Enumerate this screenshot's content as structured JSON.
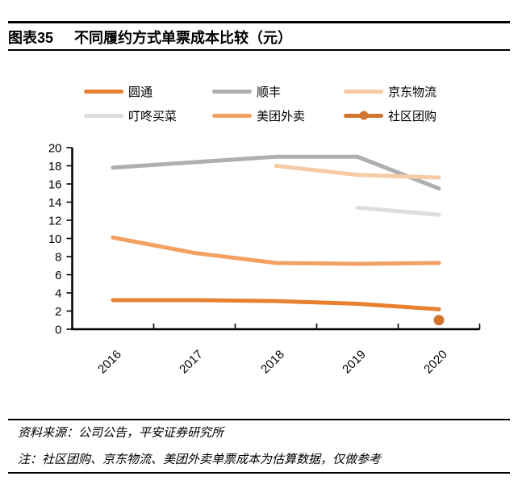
{
  "header": {
    "figure_label": "图表35",
    "title": "不同履约方式单票成本比较（元）"
  },
  "footer": {
    "source": "资料来源：公司公告，平安证券研究所",
    "note": "注：社区团购、京东物流、美团外卖单票成本为估算数据，仅做参考"
  },
  "chart_data": {
    "type": "line",
    "title": "不同履约方式单票成本比较（元）",
    "categories": [
      "2016",
      "2017",
      "2018",
      "2019",
      "2020"
    ],
    "series": [
      {
        "name": "圆通",
        "color": "#E8802E",
        "marker": "none",
        "values": [
          3.2,
          3.2,
          3.1,
          2.8,
          2.2
        ]
      },
      {
        "name": "顺丰",
        "color": "#AFAFAF",
        "marker": "none",
        "values": [
          17.8,
          18.4,
          19.0,
          19.0,
          15.5
        ]
      },
      {
        "name": "京东物流",
        "color": "#F7CBA4",
        "marker": "none",
        "values": [
          null,
          null,
          18.0,
          17.0,
          16.7
        ]
      },
      {
        "name": "叮咚买菜",
        "color": "#DEDEDE",
        "marker": "none",
        "values": [
          null,
          null,
          null,
          13.4,
          12.6
        ]
      },
      {
        "name": "美团外卖",
        "color": "#F2A163",
        "marker": "none",
        "values": [
          10.1,
          8.4,
          7.3,
          7.2,
          7.3
        ]
      },
      {
        "name": "社区团购",
        "color": "#D0742F",
        "marker": "circle",
        "values": [
          null,
          null,
          null,
          null,
          1.0
        ]
      }
    ],
    "xlabel": "",
    "ylabel": "",
    "ylim": [
      0,
      20
    ],
    "ytick_step": 2,
    "grid": false,
    "legend_position": "top"
  }
}
